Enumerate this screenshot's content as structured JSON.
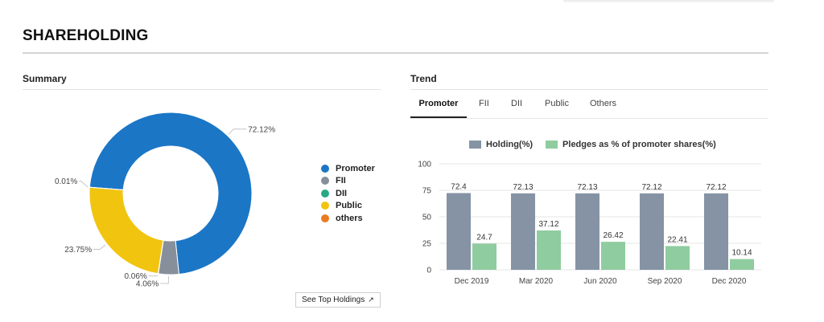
{
  "page": {
    "title": "SHAREHOLDING"
  },
  "summary": {
    "label": "Summary",
    "button_label": "See Top Holdings",
    "button_icon": "external-link-icon"
  },
  "trend": {
    "label": "Trend",
    "tabs": [
      "Promoter",
      "FII",
      "DII",
      "Public",
      "Others"
    ],
    "active_tab": "Promoter"
  },
  "chart_data": [
    {
      "type": "pie",
      "donut": true,
      "categories": [
        "Promoter",
        "FII",
        "DII",
        "Public",
        "others"
      ],
      "values": [
        72.12,
        4.06,
        0.06,
        23.75,
        0.01
      ],
      "labels": [
        "72.12%",
        "4.06%",
        "0.06%",
        "23.75%",
        "0.01%"
      ],
      "colors": [
        "#1b76c6",
        "#878f9b",
        "#27a985",
        "#f1c40f",
        "#ec7a20"
      ],
      "legend": "right"
    },
    {
      "type": "bar",
      "categories": [
        "Dec 2019",
        "Mar 2020",
        "Jun 2020",
        "Sep 2020",
        "Dec 2020"
      ],
      "series": [
        {
          "name": "Holding(%)",
          "values": [
            72.4,
            72.13,
            72.13,
            72.12,
            72.12
          ],
          "color": "#8593a4"
        },
        {
          "name": "Pledges as % of promoter shares(%)",
          "values": [
            24.7,
            37.12,
            26.42,
            22.41,
            10.14
          ],
          "color": "#8fcc9f"
        }
      ],
      "ylim": [
        0,
        100
      ],
      "yticks": [
        0,
        25,
        50,
        75,
        100
      ],
      "grid": true,
      "legend": "top"
    }
  ]
}
